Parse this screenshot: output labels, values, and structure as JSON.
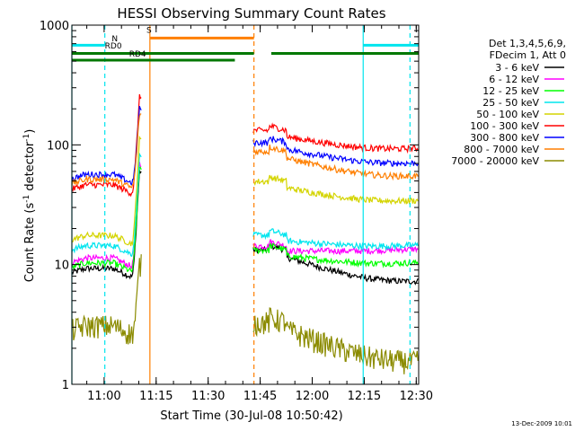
{
  "colors": {
    "background": "#ffffff",
    "axis": "#000000",
    "orbit_cyan": "#00e5ee",
    "saa_orange": "#ff7f00",
    "rd_green": "#007800",
    "flare_olive": "#8b8b00"
  },
  "chart_data": {
    "type": "line",
    "title": "HESSI Observing Summary Count Rates",
    "xlabel": "Start Time (30-Jul-08 10:50:42)",
    "ylabel_parts": [
      "Count Rate (s",
      "-1",
      " detector",
      "-1",
      ")"
    ],
    "y_scale": "log",
    "ylim": [
      1,
      1000
    ],
    "xlim_minutes": [
      0,
      100
    ],
    "x_ticks": [
      {
        "label": "11:00",
        "t": 9.3
      },
      {
        "label": "11:15",
        "t": 24.3
      },
      {
        "label": "11:30",
        "t": 39.3
      },
      {
        "label": "11:45",
        "t": 54.3
      },
      {
        "label": "12:00",
        "t": 69.3
      },
      {
        "label": "12:15",
        "t": 84.3
      },
      {
        "label": "12:30",
        "t": 99.3
      }
    ],
    "y_ticks": [
      {
        "label": "1",
        "v": 1
      },
      {
        "label": "10",
        "v": 10
      },
      {
        "label": "100",
        "v": 100
      },
      {
        "label": "1000",
        "v": 1000
      }
    ],
    "legend_header": [
      "Det 1,3,4,5,6,9,",
      "FDecim 1, Att 0"
    ],
    "legend_placement": "right",
    "series": [
      {
        "name": "3 - 6 keV",
        "color": "#000000",
        "pre": 9.0,
        "pk": 60,
        "post": 12,
        "late": 7
      },
      {
        "name": "6 - 12 keV",
        "color": "#ff00ff",
        "pre": 11,
        "pk": 70,
        "post": 13,
        "late": 13
      },
      {
        "name": "12 - 25 keV",
        "color": "#00ff00",
        "pre": 10,
        "pk": 65,
        "post": 12,
        "late": 10
      },
      {
        "name": "25 - 50 keV",
        "color": "#00e5ee",
        "pre": 14,
        "pk": 80,
        "post": 16,
        "late": 14
      },
      {
        "name": "50 - 100 keV",
        "color": "#d4d400",
        "pre": 17,
        "pk": 110,
        "post": 45,
        "late": 33
      },
      {
        "name": "100 - 300 keV",
        "color": "#ff0000",
        "pre": 45,
        "pk": 250,
        "post": 120,
        "late": 90
      },
      {
        "name": "300 - 800 keV",
        "color": "#0000ff",
        "pre": 55,
        "pk": 200,
        "post": 95,
        "late": 68
      },
      {
        "name": "800 - 7000 keV",
        "color": "#ff7f00",
        "pre": 50,
        "pk": 180,
        "post": 80,
        "late": 53
      },
      {
        "name": "7000 - 20000 keV",
        "color": "#8b8b00",
        "pre": 3,
        "pk": 10,
        "post": 3,
        "late": 1.5
      }
    ],
    "gaps": [
      [
        20.2,
        52.3
      ]
    ],
    "flags": [
      {
        "label": "N",
        "color": "#00e5ee",
        "v": 680,
        "segments": [
          [
            0,
            9.5
          ],
          [
            84,
            100
          ]
        ]
      },
      {
        "label": "S",
        "color": "#ff7f00",
        "v": 780,
        "segments": [
          [
            22.5,
            52.5
          ]
        ]
      },
      {
        "label": "RD0",
        "color": "#007800",
        "v": 580,
        "segments": [
          [
            0,
            52.5
          ],
          [
            57.5,
            100
          ]
        ]
      },
      {
        "label": "RD4",
        "color": "#007800",
        "v": 510,
        "segments": [
          [
            0,
            47
          ]
        ]
      }
    ],
    "flag_label_pos": [
      {
        "label": "N",
        "t": 11.5,
        "v": 730
      },
      {
        "label": "S",
        "t": 21.5,
        "v": 860
      },
      {
        "label": "RD0",
        "t": 9.5,
        "v": 640
      },
      {
        "label": "RD4",
        "t": 16.5,
        "v": 545
      }
    ],
    "vlines": [
      {
        "t": 0,
        "color": "#00e5ee",
        "dashed": false
      },
      {
        "t": 9.5,
        "color": "#00e5ee",
        "dashed": true
      },
      {
        "t": 22.5,
        "color": "#ff7f00",
        "dashed": false
      },
      {
        "t": 52.5,
        "color": "#ff7f00",
        "dashed": true
      },
      {
        "t": 84,
        "color": "#00e5ee",
        "dashed": false
      },
      {
        "t": 97.5,
        "color": "#00e5ee",
        "dashed": true
      }
    ]
  },
  "footer_timestamp": "13-Dec-2009 10:01"
}
